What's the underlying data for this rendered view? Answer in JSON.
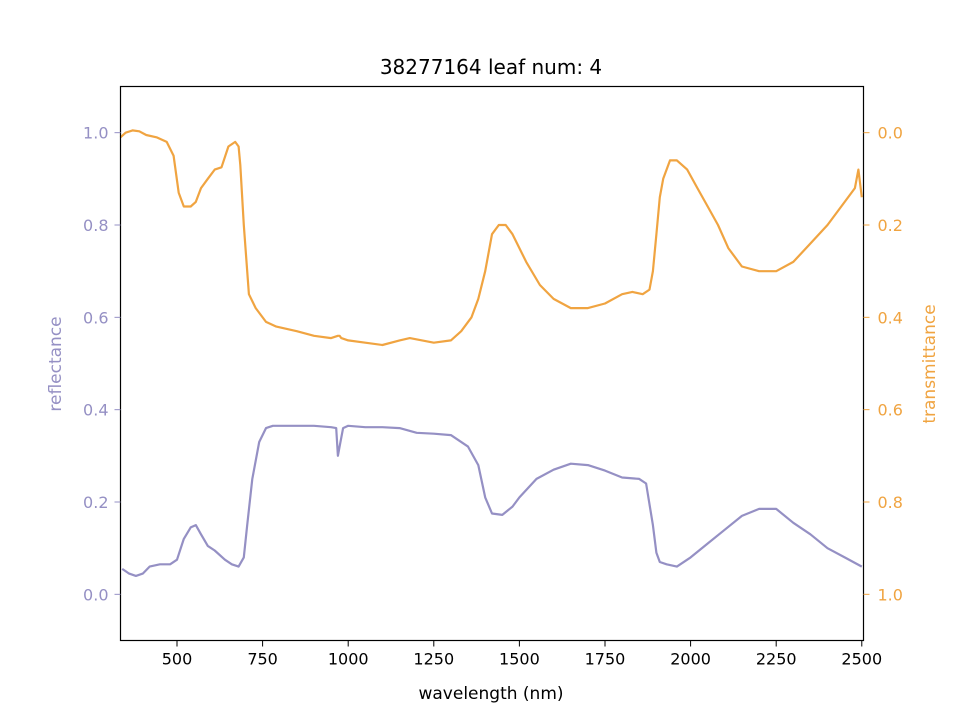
{
  "chart_data": {
    "type": "line",
    "title": "38277164 leaf num: 4",
    "xlabel": "wavelength (nm)",
    "ylabel_left": "reflectance",
    "ylabel_right": "transmittance",
    "xlim": [
      335,
      2505
    ],
    "ylim_left": [
      -0.1,
      1.1
    ],
    "ylim_right": [
      1.1,
      -0.1
    ],
    "right_axis_inverted": true,
    "grid": false,
    "x_ticks": [
      "500",
      "750",
      "1000",
      "1250",
      "1500",
      "1750",
      "2000",
      "2250",
      "2500"
    ],
    "y_left_ticks": [
      "0.0",
      "0.2",
      "0.4",
      "0.6",
      "0.8",
      "1.0"
    ],
    "y_right_ticks": [
      "0.0",
      "0.2",
      "0.4",
      "0.6",
      "0.8",
      "1.0"
    ],
    "colors": {
      "reflectance": "#9590c4",
      "transmittance": "#f0a441"
    },
    "series": [
      {
        "name": "reflectance",
        "axis": "left",
        "x": [
          340,
          360,
          380,
          400,
          420,
          450,
          480,
          500,
          520,
          540,
          555,
          570,
          590,
          610,
          640,
          660,
          680,
          695,
          705,
          720,
          740,
          760,
          780,
          800,
          850,
          900,
          950,
          965,
          970,
          975,
          985,
          1000,
          1050,
          1100,
          1150,
          1200,
          1250,
          1300,
          1350,
          1380,
          1400,
          1420,
          1450,
          1480,
          1500,
          1550,
          1600,
          1650,
          1700,
          1750,
          1800,
          1850,
          1870,
          1890,
          1900,
          1910,
          1930,
          1960,
          2000,
          2050,
          2100,
          2150,
          2200,
          2250,
          2300,
          2350,
          2400,
          2450,
          2500
        ],
        "y": [
          0.055,
          0.045,
          0.04,
          0.045,
          0.06,
          0.065,
          0.065,
          0.075,
          0.12,
          0.145,
          0.15,
          0.13,
          0.105,
          0.095,
          0.075,
          0.065,
          0.06,
          0.08,
          0.15,
          0.25,
          0.33,
          0.36,
          0.365,
          0.365,
          0.365,
          0.365,
          0.362,
          0.36,
          0.3,
          0.32,
          0.36,
          0.365,
          0.362,
          0.362,
          0.36,
          0.35,
          0.348,
          0.345,
          0.32,
          0.28,
          0.21,
          0.175,
          0.172,
          0.19,
          0.21,
          0.25,
          0.27,
          0.283,
          0.28,
          0.268,
          0.253,
          0.25,
          0.24,
          0.15,
          0.09,
          0.07,
          0.065,
          0.06,
          0.08,
          0.11,
          0.14,
          0.17,
          0.185,
          0.185,
          0.155,
          0.13,
          0.1,
          0.08,
          0.06
        ]
      },
      {
        "name": "transmittance",
        "axis": "right",
        "x": [
          335,
          350,
          370,
          390,
          410,
          440,
          470,
          490,
          505,
          520,
          540,
          555,
          570,
          590,
          610,
          630,
          650,
          670,
          680,
          685,
          695,
          710,
          730,
          760,
          790,
          850,
          900,
          950,
          970,
          975,
          980,
          1000,
          1050,
          1100,
          1150,
          1180,
          1250,
          1300,
          1330,
          1360,
          1380,
          1400,
          1420,
          1440,
          1460,
          1480,
          1520,
          1560,
          1600,
          1650,
          1700,
          1750,
          1800,
          1830,
          1860,
          1880,
          1890,
          1900,
          1910,
          1920,
          1940,
          1960,
          1990,
          2020,
          2050,
          2080,
          2110,
          2150,
          2200,
          2250,
          2300,
          2350,
          2400,
          2450,
          2480,
          2490,
          2500
        ],
        "y": [
          0.01,
          0.0,
          -0.005,
          -0.003,
          0.005,
          0.01,
          0.02,
          0.05,
          0.13,
          0.16,
          0.16,
          0.15,
          0.12,
          0.1,
          0.08,
          0.075,
          0.03,
          0.02,
          0.03,
          0.07,
          0.2,
          0.35,
          0.38,
          0.41,
          0.42,
          0.43,
          0.44,
          0.445,
          0.44,
          0.44,
          0.445,
          0.45,
          0.455,
          0.46,
          0.45,
          0.445,
          0.455,
          0.45,
          0.43,
          0.4,
          0.36,
          0.3,
          0.22,
          0.2,
          0.2,
          0.22,
          0.28,
          0.33,
          0.36,
          0.38,
          0.38,
          0.37,
          0.35,
          0.345,
          0.35,
          0.34,
          0.3,
          0.22,
          0.14,
          0.1,
          0.06,
          0.06,
          0.08,
          0.12,
          0.16,
          0.2,
          0.25,
          0.29,
          0.3,
          0.3,
          0.28,
          0.24,
          0.2,
          0.15,
          0.12,
          0.08,
          0.14
        ]
      }
    ]
  }
}
